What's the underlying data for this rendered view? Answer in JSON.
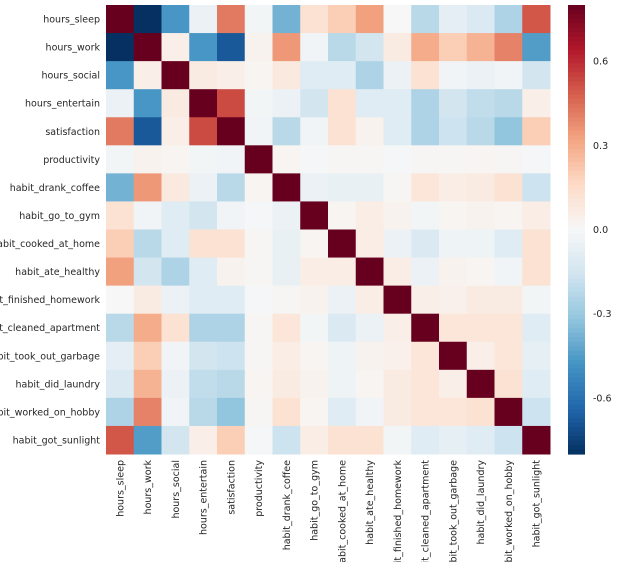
{
  "chart_data": {
    "type": "heatmap",
    "title": "",
    "labels": [
      "hours_sleep",
      "hours_work",
      "hours_social",
      "hours_entertain",
      "satisfaction",
      "productivity",
      "habit_drank_coffee",
      "habit_go_to_gym",
      "habit_cooked_at_home",
      "habit_ate_healthy",
      "habit_finished_homework",
      "habit_cleaned_apartment",
      "habit_took_out_garbage",
      "habit_did_laundry",
      "habit_worked_on_hobby",
      "habit_got_sunlight"
    ],
    "values": [
      [
        1,
        -0.8,
        -0.47,
        -0.05,
        0.42,
        -0.02,
        -0.38,
        0.12,
        0.2,
        0.33,
        0.0,
        -0.22,
        -0.08,
        -0.12,
        -0.25,
        0.5
      ],
      [
        -0.8,
        1,
        0.05,
        -0.47,
        -0.68,
        0.03,
        0.35,
        -0.03,
        -0.22,
        -0.15,
        0.07,
        0.3,
        0.2,
        0.28,
        0.4,
        -0.45
      ],
      [
        -0.47,
        0.05,
        1,
        0.07,
        0.05,
        0.02,
        0.08,
        -0.1,
        -0.1,
        -0.25,
        -0.05,
        0.12,
        -0.03,
        -0.05,
        -0.03,
        -0.15
      ],
      [
        -0.05,
        -0.47,
        0.07,
        1,
        0.53,
        -0.02,
        -0.05,
        -0.15,
        0.12,
        -0.1,
        -0.1,
        -0.25,
        -0.15,
        -0.2,
        -0.22,
        0.05
      ],
      [
        0.42,
        -0.68,
        0.05,
        0.53,
        1,
        -0.03,
        -0.22,
        -0.03,
        0.12,
        0.03,
        -0.1,
        -0.25,
        -0.17,
        -0.22,
        -0.32,
        0.2
      ],
      [
        -0.02,
        0.03,
        0.02,
        -0.02,
        -0.03,
        1,
        0.02,
        -0.01,
        0.01,
        0.01,
        -0.01,
        0.01,
        0.01,
        0.02,
        0.01,
        -0.01
      ],
      [
        -0.38,
        0.35,
        0.08,
        -0.05,
        -0.22,
        0.02,
        1,
        -0.05,
        -0.06,
        -0.06,
        0.01,
        0.1,
        0.06,
        0.07,
        0.12,
        -0.17
      ],
      [
        0.12,
        -0.03,
        -0.1,
        -0.15,
        -0.03,
        -0.01,
        -0.05,
        1,
        0.02,
        0.06,
        0.03,
        -0.02,
        0.02,
        0.03,
        0.02,
        0.06
      ],
      [
        0.2,
        -0.22,
        -0.1,
        0.12,
        0.12,
        0.01,
        -0.06,
        0.02,
        1,
        0.06,
        -0.05,
        -0.12,
        -0.04,
        -0.04,
        -0.1,
        0.12
      ],
      [
        0.33,
        -0.15,
        -0.25,
        -0.1,
        0.03,
        0.01,
        -0.06,
        0.06,
        0.06,
        1,
        0.06,
        -0.05,
        0.03,
        0.02,
        -0.03,
        0.12
      ],
      [
        0.0,
        0.07,
        -0.05,
        -0.1,
        -0.1,
        -0.01,
        0.01,
        0.03,
        -0.05,
        0.06,
        1,
        0.05,
        0.04,
        0.07,
        0.07,
        -0.02
      ],
      [
        -0.22,
        0.3,
        0.12,
        -0.25,
        -0.25,
        0.01,
        0.1,
        -0.02,
        -0.12,
        -0.05,
        0.05,
        1,
        0.1,
        0.1,
        0.1,
        -0.1
      ],
      [
        -0.08,
        0.2,
        -0.03,
        -0.15,
        -0.17,
        0.01,
        0.06,
        0.02,
        -0.04,
        0.03,
        0.04,
        0.1,
        1,
        0.05,
        0.1,
        -0.07
      ],
      [
        -0.12,
        0.28,
        -0.05,
        -0.2,
        -0.22,
        0.02,
        0.07,
        0.03,
        -0.04,
        0.02,
        0.07,
        0.1,
        0.05,
        1,
        0.12,
        -0.1
      ],
      [
        -0.25,
        0.4,
        -0.03,
        -0.22,
        -0.32,
        0.01,
        0.12,
        0.02,
        -0.1,
        -0.03,
        0.07,
        0.1,
        0.1,
        0.12,
        1,
        -0.17
      ],
      [
        0.5,
        -0.45,
        -0.15,
        0.05,
        0.2,
        -0.01,
        -0.17,
        0.06,
        0.12,
        0.12,
        -0.02,
        -0.1,
        -0.07,
        -0.1,
        -0.17,
        1
      ]
    ],
    "colormap": "RdBu_r",
    "vmin": -0.8,
    "vmax": 0.8,
    "colorbar_ticks": [
      0.6,
      0.3,
      0.0,
      -0.3,
      -0.6
    ],
    "colorbar_tick_labels": [
      "0.6",
      "0.3",
      "0.0",
      "-0.3",
      "-0.6"
    ],
    "grid": false,
    "legend": "colorbar-right"
  }
}
